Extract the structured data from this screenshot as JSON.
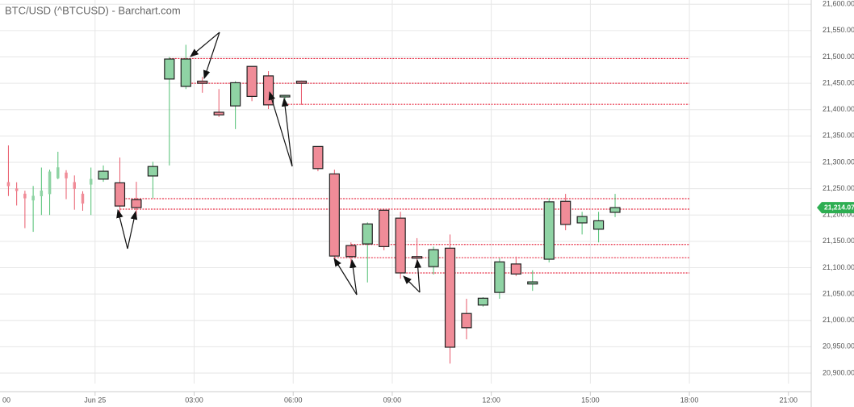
{
  "chart_data": {
    "type": "candlestick",
    "title": "BTC/USD (^BTCUSD) - Barchart.com",
    "up_color": "#8fd3a4",
    "down_color": "#f08c98",
    "level_color": "#e8334a",
    "x": [
      -2.625,
      -2.375,
      -2.125,
      -1.875,
      -1.625,
      -1.375,
      -1.125,
      -0.875,
      -0.625,
      -0.375,
      -0.125,
      0.25,
      0.75,
      1.25,
      1.75,
      2.25,
      2.75,
      3.25,
      3.75,
      4.25,
      4.75,
      5.25,
      5.75,
      6.25,
      6.75,
      7.25,
      7.75,
      8.25,
      8.75,
      9.25,
      9.75,
      10.25,
      10.75,
      11.25,
      11.75,
      12.25,
      12.75,
      13.25,
      13.75,
      14.25,
      14.75,
      15.25,
      15.75
    ],
    "open": [
      21262,
      21250,
      21240,
      21228,
      21236,
      21240,
      21270,
      21280,
      21262,
      21240,
      21258,
      21268,
      21261,
      21229,
      21274,
      21458,
      21444,
      21454,
      21395,
      21407,
      21482,
      21464,
      21424,
      21454,
      21330,
      21278,
      21142,
      21145,
      21209,
      21194,
      21121,
      21102,
      21137,
      21013,
      21029,
      21053,
      21107,
      21069,
      21116,
      21226,
      21185,
      21173,
      21205
    ],
    "high": [
      21332,
      21262,
      21246,
      21255,
      21290,
      21286,
      21320,
      21285,
      21275,
      21245,
      21290,
      21294,
      21309,
      21263,
      21301,
      21500,
      21523,
      21462,
      21439,
      21454,
      21482,
      21473,
      21428,
      21455,
      21330,
      21286,
      21148,
      21186,
      21212,
      21206,
      21156,
      21140,
      21163,
      21041,
      21044,
      21118,
      21121,
      21095,
      21232,
      21240,
      21206,
      21206,
      21240
    ],
    "low": [
      21236,
      21218,
      21175,
      21168,
      21200,
      21200,
      21268,
      21230,
      21210,
      21208,
      21200,
      21263,
      21202,
      21194,
      21232,
      21294,
      21439,
      21432,
      21386,
      21363,
      21416,
      21401,
      21416,
      21409,
      21283,
      21118,
      21102,
      21072,
      21133,
      21079,
      21110,
      21087,
      20918,
      20964,
      21026,
      21041,
      21084,
      21056,
      21110,
      21171,
      21163,
      21148,
      21196
    ],
    "close": [
      21255,
      21246,
      21232,
      21236,
      21246,
      21282,
      21290,
      21270,
      21250,
      21222,
      21268,
      21283,
      21217,
      21214,
      21292,
      21496,
      21496,
      21450,
      21390,
      21451,
      21425,
      21409,
      21427,
      21450,
      21288,
      21122,
      21121,
      21183,
      21140,
      21090,
      21118,
      21134,
      20949,
      20986,
      21042,
      21111,
      21088,
      21073,
      21225,
      21182,
      21197,
      21189,
      21214
    ],
    "levels": [
      {
        "value": 21497,
        "start": 2.25
      },
      {
        "value": 21450,
        "start": 2.75
      },
      {
        "value": 21410,
        "start": 5.75
      },
      {
        "value": 21231,
        "start": 0.75
      },
      {
        "value": 21211,
        "start": 0.75
      },
      {
        "value": 21144,
        "start": 7.75
      },
      {
        "value": 21119,
        "start": 7.25
      },
      {
        "value": 21090,
        "start": 9.25
      }
    ],
    "levels_end": 18,
    "last_price_label": "21,214.07",
    "xlim": [
      -2.88,
      21.69
    ],
    "ylim": [
      20880,
      21608
    ],
    "xticks": [
      {
        "value": -3,
        "label": "00"
      },
      {
        "value": 0,
        "label": "Jun 25"
      },
      {
        "value": 3,
        "label": "03:00"
      },
      {
        "value": 6,
        "label": "06:00"
      },
      {
        "value": 9,
        "label": "09:00"
      },
      {
        "value": 12,
        "label": "12:00"
      },
      {
        "value": 15,
        "label": "15:00"
      },
      {
        "value": 18,
        "label": "18:00"
      },
      {
        "value": 21,
        "label": "21:00"
      }
    ],
    "yticks": [
      {
        "value": 20900,
        "label": "20,900.00"
      },
      {
        "value": 20950,
        "label": "20,950.00"
      },
      {
        "value": 21000,
        "label": "21,000.00"
      },
      {
        "value": 21050,
        "label": "21,050.00"
      },
      {
        "value": 21100,
        "label": "21,100.00"
      },
      {
        "value": 21150,
        "label": "21,150.00"
      },
      {
        "value": 21200,
        "label": "21,200.00"
      },
      {
        "value": 21250,
        "label": "21,250.00"
      },
      {
        "value": 21300,
        "label": "21,300.00"
      },
      {
        "value": 21350,
        "label": "21,350.00"
      },
      {
        "value": 21400,
        "label": "21,400.00"
      },
      {
        "value": 21450,
        "label": "21,450.00"
      },
      {
        "value": 21500,
        "label": "21,500.00"
      },
      {
        "value": 21550,
        "label": "21,550.00"
      },
      {
        "value": 21600,
        "label": "21,600.00"
      }
    ],
    "grid": true
  }
}
